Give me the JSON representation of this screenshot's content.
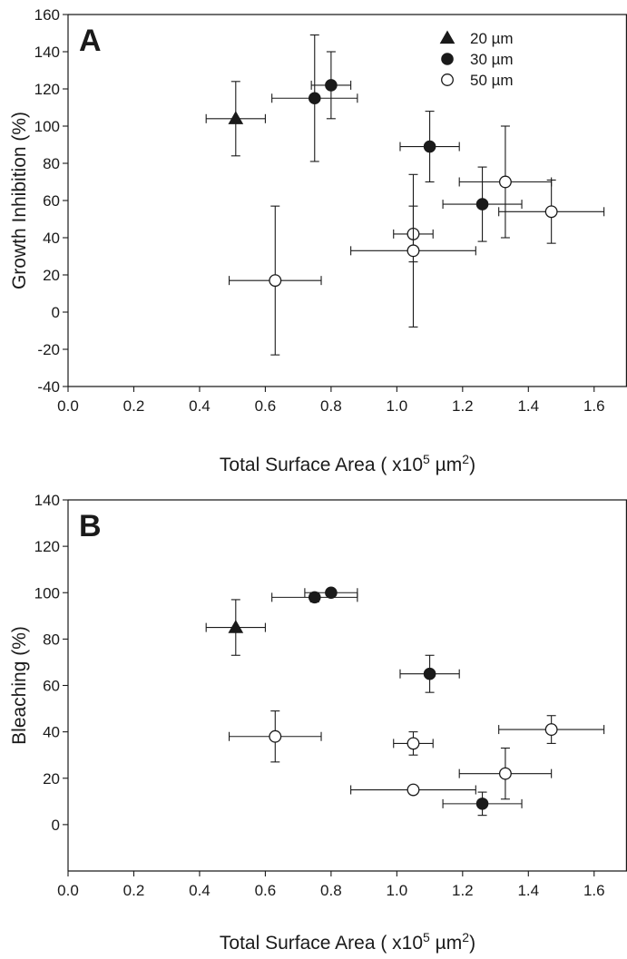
{
  "chart_data": [
    {
      "type": "scatter",
      "panel_label": "A",
      "xlabel": "Total Surface Area ( x10",
      "xlabel_exp": "5",
      "xlabel_unit": " µm",
      "xlabel_unit_exp": "2",
      "xlabel_close": ")",
      "ylabel": "Growth Inhibition (%)",
      "xlim": [
        0.0,
        1.7
      ],
      "ylim": [
        -40,
        160
      ],
      "xticks": [
        "0.0",
        "0.2",
        "0.4",
        "0.6",
        "0.8",
        "1.0",
        "1.2",
        "1.4",
        "1.6"
      ],
      "yticks": [
        "-40",
        "-20",
        "0",
        "20",
        "40",
        "60",
        "80",
        "100",
        "120",
        "140",
        "160"
      ],
      "legend_position": "top-right",
      "series": [
        {
          "name": "20 µm",
          "marker": "filled-triangle",
          "points": [
            {
              "x": 0.51,
              "y": 104,
              "xerr": 0.09,
              "yerr": 20
            }
          ]
        },
        {
          "name": "30 µm",
          "marker": "filled-circle",
          "points": [
            {
              "x": 0.75,
              "y": 115,
              "xerr": 0.13,
              "yerr": 34
            },
            {
              "x": 0.8,
              "y": 122,
              "xerr": 0.06,
              "yerr": 18
            },
            {
              "x": 1.1,
              "y": 89,
              "xerr": 0.09,
              "yerr": 19
            },
            {
              "x": 1.26,
              "y": 58,
              "xerr": 0.12,
              "yerr": 20
            }
          ]
        },
        {
          "name": "50 µm",
          "marker": "open-circle",
          "points": [
            {
              "x": 0.63,
              "y": 17,
              "xerr": 0.14,
              "yerr": 40
            },
            {
              "x": 1.05,
              "y": 42,
              "xerr": 0.06,
              "yerr": 15
            },
            {
              "x": 1.05,
              "y": 33,
              "xerr": 0.19,
              "yerr": 41
            },
            {
              "x": 1.33,
              "y": 70,
              "xerr": 0.14,
              "yerr": 30
            },
            {
              "x": 1.47,
              "y": 54,
              "xerr": 0.16,
              "yerr": 17
            }
          ]
        }
      ]
    },
    {
      "type": "scatter",
      "panel_label": "B",
      "xlabel": "Total Surface Area ( x10",
      "xlabel_exp": "5",
      "xlabel_unit": " µm",
      "xlabel_unit_exp": "2",
      "xlabel_close": ")",
      "ylabel": "Bleaching (%)",
      "xlim": [
        0.0,
        1.7
      ],
      "ylim": [
        -20,
        140
      ],
      "xticks": [
        "0.0",
        "0.2",
        "0.4",
        "0.6",
        "0.8",
        "1.0",
        "1.2",
        "1.4",
        "1.6"
      ],
      "yticks": [
        "0",
        "20",
        "40",
        "60",
        "80",
        "100",
        "120",
        "140"
      ],
      "series": [
        {
          "name": "20 µm",
          "marker": "filled-triangle",
          "points": [
            {
              "x": 0.51,
              "y": 85,
              "xerr": 0.09,
              "yerr": 12
            }
          ]
        },
        {
          "name": "30 µm",
          "marker": "filled-circle",
          "points": [
            {
              "x": 0.75,
              "y": 98,
              "xerr": 0.13,
              "yerr": 2
            },
            {
              "x": 0.8,
              "y": 100,
              "xerr": 0.08,
              "yerr": 1
            },
            {
              "x": 1.1,
              "y": 65,
              "xerr": 0.09,
              "yerr": 8
            },
            {
              "x": 1.26,
              "y": 9,
              "xerr": 0.12,
              "yerr": 5
            }
          ]
        },
        {
          "name": "50 µm",
          "marker": "open-circle",
          "points": [
            {
              "x": 0.63,
              "y": 38,
              "xerr": 0.14,
              "yerr": 11
            },
            {
              "x": 1.05,
              "y": 35,
              "xerr": 0.06,
              "yerr": 5
            },
            {
              "x": 1.05,
              "y": 15,
              "xerr": 0.19,
              "yerr": 1
            },
            {
              "x": 1.33,
              "y": 22,
              "xerr": 0.14,
              "yerr": 11
            },
            {
              "x": 1.47,
              "y": 41,
              "xerr": 0.16,
              "yerr": 6
            }
          ]
        }
      ]
    }
  ]
}
